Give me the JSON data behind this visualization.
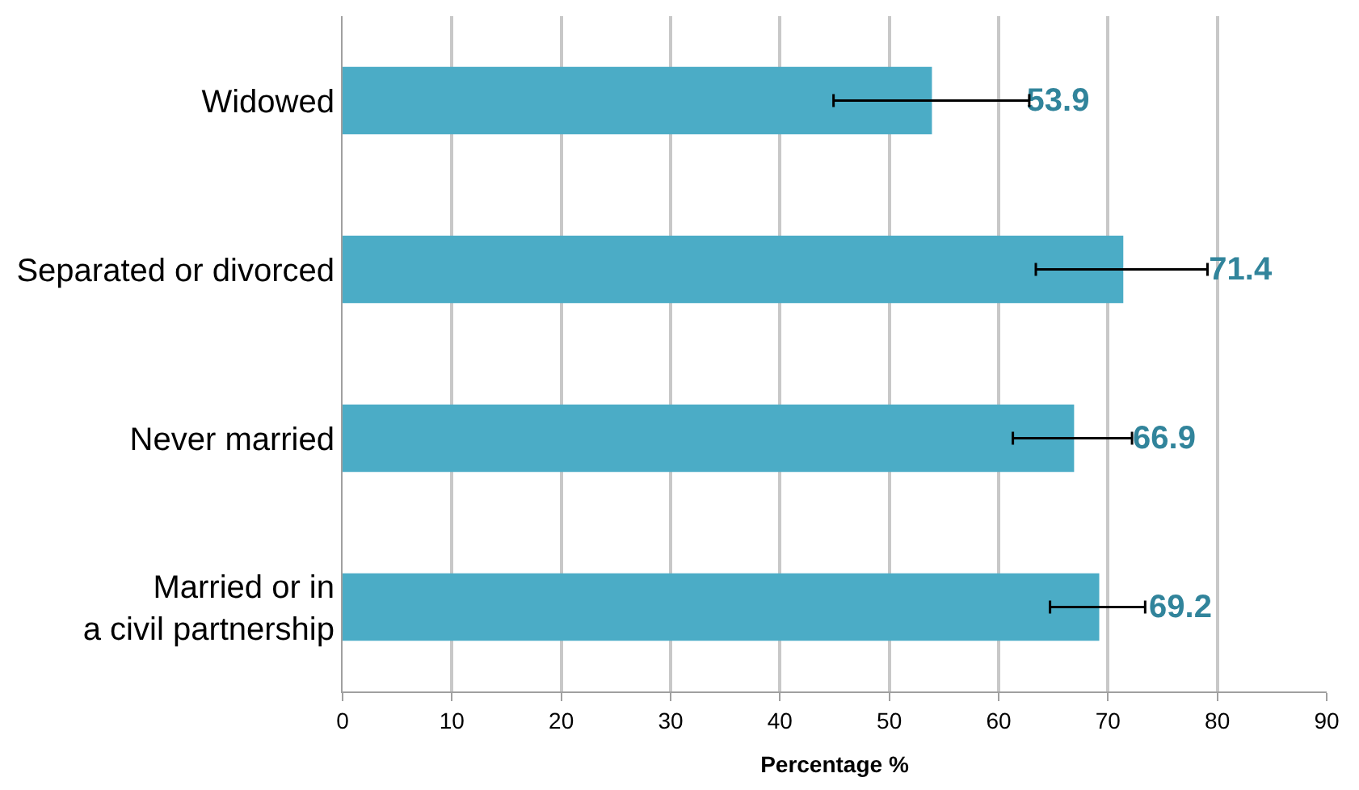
{
  "chart_data": {
    "type": "bar",
    "orientation": "horizontal",
    "xlabel": "Percentage %",
    "categories": [
      "Widowed",
      "Separated or divorced",
      "Never married",
      "Married or in\na civil partnership"
    ],
    "values": [
      53.9,
      71.4,
      66.9,
      69.2
    ],
    "errors": [
      [
        44.9,
        62.8
      ],
      [
        63.4,
        79.1
      ],
      [
        61.3,
        72.2
      ],
      [
        64.7,
        73.4
      ]
    ],
    "color": "#4bacc6",
    "data_labels": true,
    "xlim": [
      0,
      90
    ],
    "xticks": [
      0,
      10,
      20,
      30,
      40,
      50,
      60,
      70,
      80,
      90
    ],
    "grid": "x",
    "legend": false
  }
}
